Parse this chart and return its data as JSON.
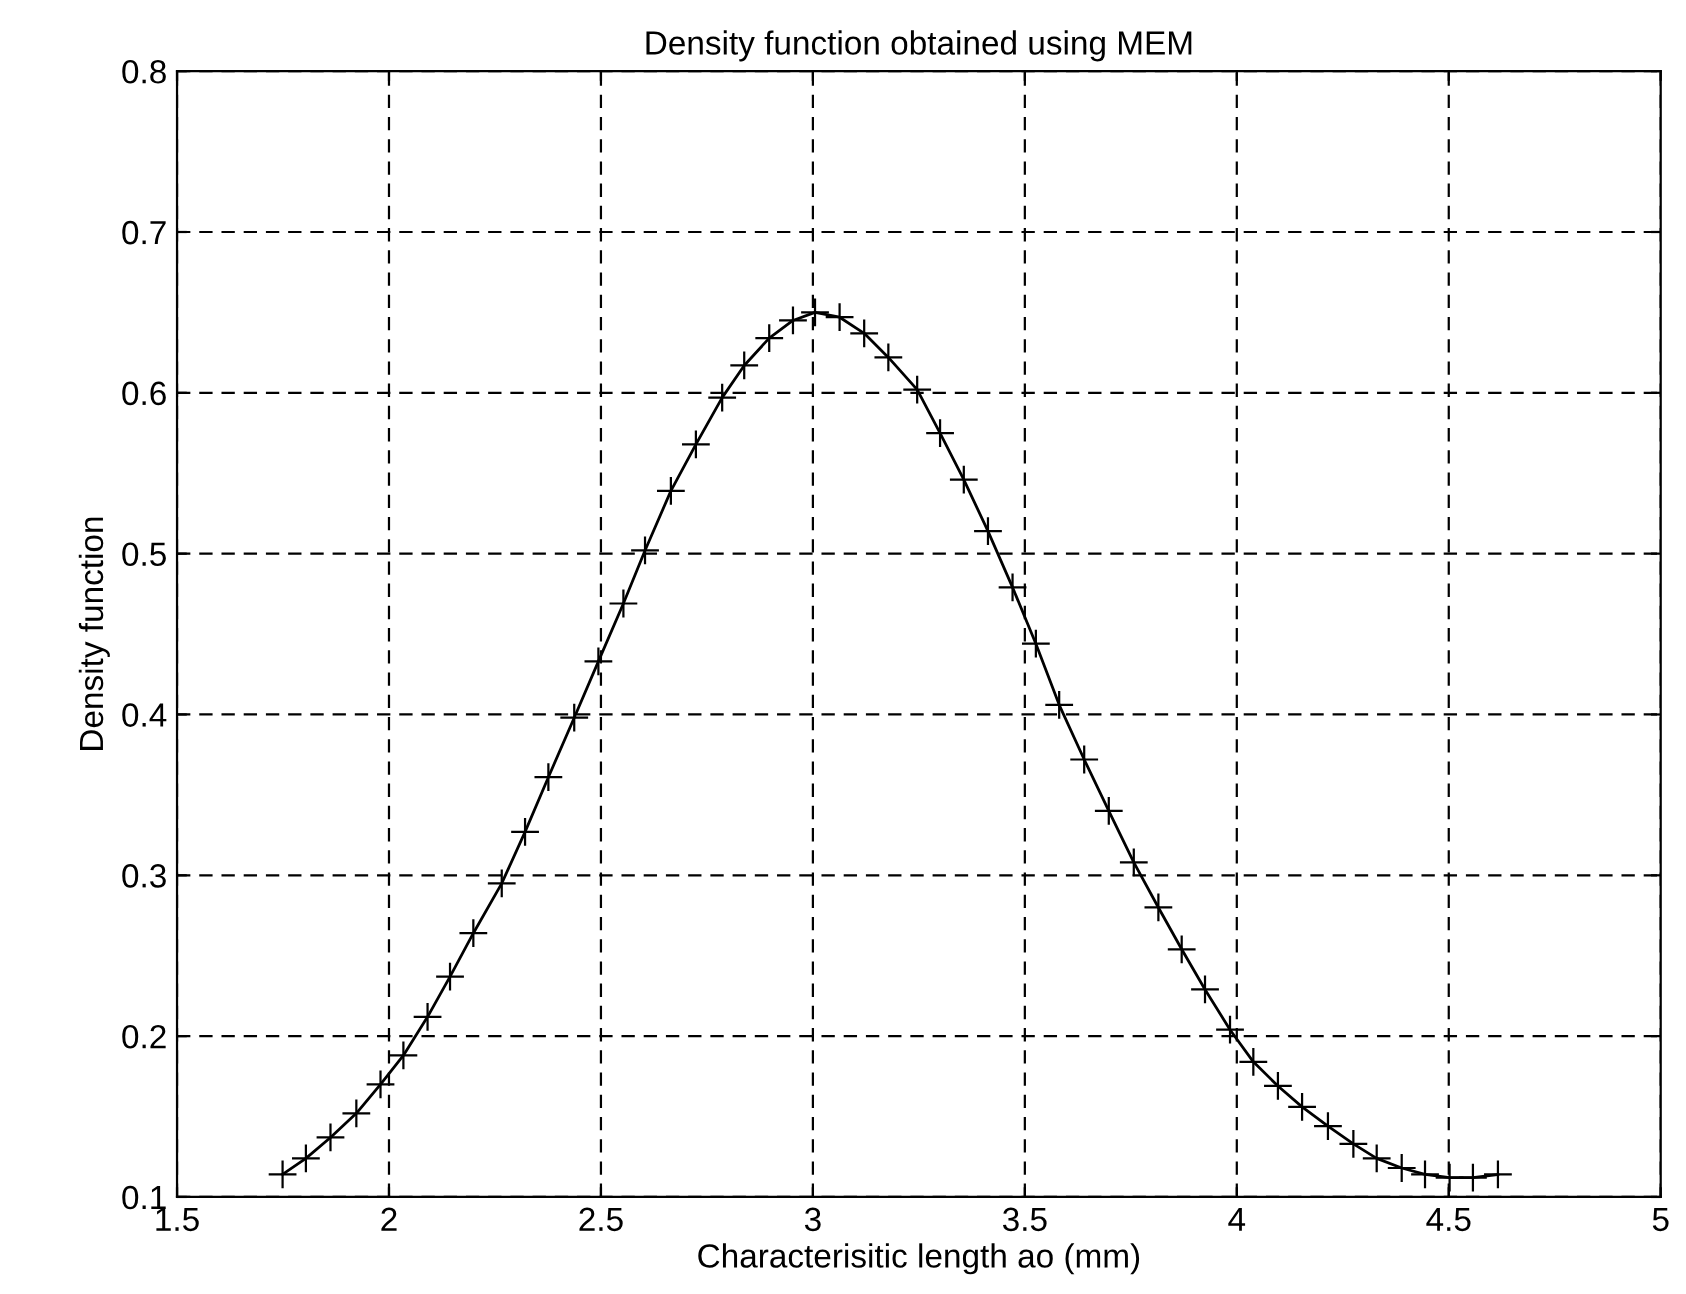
{
  "chart_data": {
    "type": "line",
    "title": "Density function obtained using MEM",
    "xlabel": "Characterisitic length ao (mm)",
    "ylabel": "Density function",
    "series": [
      {
        "color": "#000000",
        "x": [
          1.749,
          1.804,
          1.862,
          1.923,
          1.98,
          2.034,
          2.091,
          2.144,
          2.199,
          2.266,
          2.321,
          2.376,
          2.437,
          2.494,
          2.553,
          2.604,
          2.665,
          2.724,
          2.786,
          2.838,
          2.897,
          2.953,
          3.005,
          3.063,
          3.121,
          3.178,
          3.246,
          3.3,
          3.356,
          3.413,
          3.471,
          3.526,
          3.581,
          3.64,
          3.698,
          3.757,
          3.815,
          3.87,
          3.925,
          3.984,
          4.039,
          4.097,
          4.154,
          4.215,
          4.275,
          4.33,
          4.389,
          4.444,
          4.502,
          4.557,
          4.616
        ],
        "values": [
          0.114,
          0.124,
          0.137,
          0.152,
          0.17,
          0.188,
          0.212,
          0.237,
          0.264,
          0.295,
          0.327,
          0.361,
          0.398,
          0.433,
          0.469,
          0.502,
          0.539,
          0.568,
          0.597,
          0.617,
          0.634,
          0.645,
          0.65,
          0.647,
          0.637,
          0.622,
          0.602,
          0.575,
          0.546,
          0.514,
          0.479,
          0.444,
          0.406,
          0.372,
          0.34,
          0.308,
          0.28,
          0.254,
          0.229,
          0.204,
          0.184,
          0.169,
          0.156,
          0.144,
          0.133,
          0.124,
          0.118,
          0.114,
          0.112,
          0.112,
          0.114
        ]
      }
    ],
    "xlim": [
      1.5,
      5
    ],
    "xticks": [
      1.5,
      2,
      2.5,
      3,
      3.5,
      4,
      4.5,
      5
    ],
    "ylim": [
      0.1,
      0.8
    ],
    "yticks": [
      0.1,
      0.2,
      0.3,
      0.4,
      0.5,
      0.6,
      0.7,
      0.8
    ],
    "grid": true,
    "marker": "cross",
    "line_style": "solid",
    "legend": false
  }
}
